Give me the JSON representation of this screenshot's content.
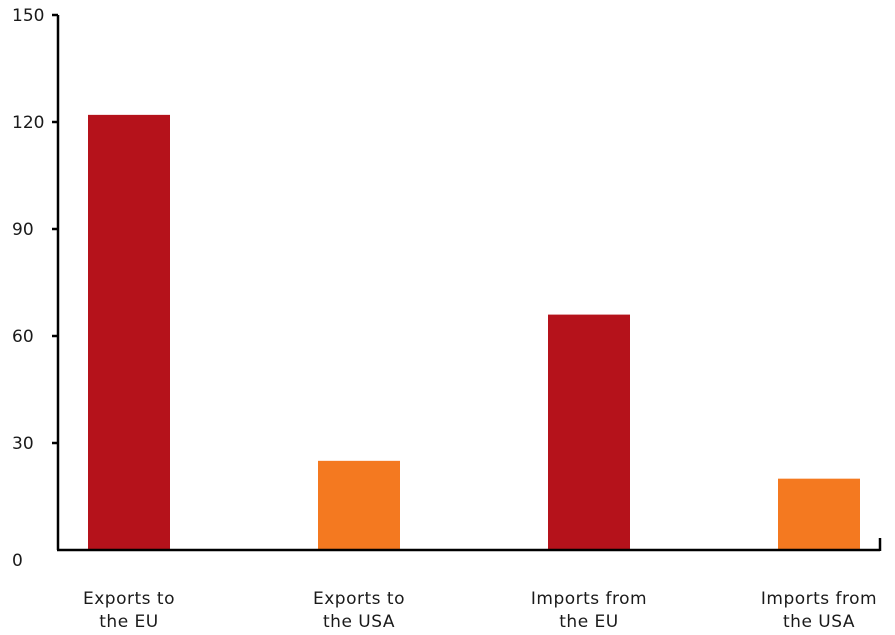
{
  "chart_data": {
    "type": "bar",
    "title": "",
    "xlabel": "",
    "ylabel": "",
    "ylim": [
      0,
      150
    ],
    "yticks": [
      0,
      30,
      60,
      90,
      120,
      150
    ],
    "grid": false,
    "legend": "none",
    "categories": [
      [
        "Exports to",
        "the EU"
      ],
      [
        "Exports to",
        "the USA"
      ],
      [
        "Imports from",
        "the EU"
      ],
      [
        "Imports from",
        "the USA"
      ]
    ],
    "values": [
      122,
      25,
      66,
      20
    ],
    "bar_colors": [
      "#b5121b",
      "#f47920",
      "#b5121b",
      "#f47920"
    ],
    "axis_color": "#000000"
  }
}
